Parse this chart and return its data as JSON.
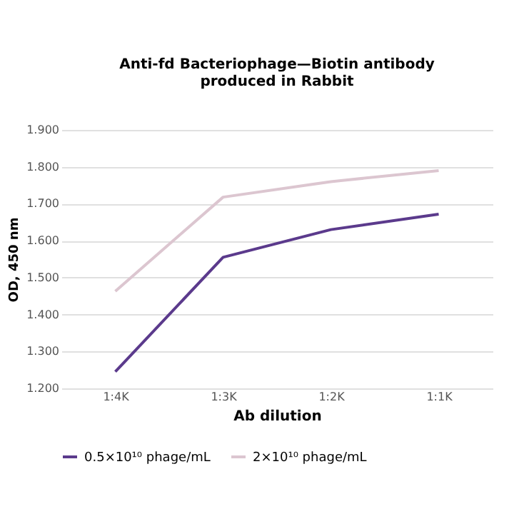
{
  "chart_data": {
    "type": "line",
    "title": [
      "Anti-fd Bacteriophage—Biotin antibody",
      "produced in Rabbit"
    ],
    "xlabel": "Ab dilution",
    "ylabel": "OD, 450 nm",
    "categories": [
      "1:4K",
      "1:3K",
      "1:2K",
      "1:1K"
    ],
    "series": [
      {
        "name": "0.5×10¹⁰ phage/mL",
        "color": "#5b3a8c",
        "values": [
          1.245,
          1.555,
          1.63,
          1.672
        ]
      },
      {
        "name": "2×10¹⁰ phage/mL",
        "color": "#dcc6d0",
        "values": [
          1.463,
          1.718,
          1.76,
          1.79
        ]
      }
    ],
    "ylim": [
      1.2,
      1.9
    ],
    "yticks": [
      {
        "value": 1.2,
        "label": "1.200"
      },
      {
        "value": 1.3,
        "label": "1.300"
      },
      {
        "value": 1.4,
        "label": "1.400"
      },
      {
        "value": 1.5,
        "label": "1.500"
      },
      {
        "value": 1.6,
        "label": "1.600"
      },
      {
        "value": 1.7,
        "label": "1.700"
      },
      {
        "value": 1.8,
        "label": "1.800"
      },
      {
        "value": 1.9,
        "label": "1.900"
      }
    ],
    "grid": "y",
    "legend": "bottom",
    "marker": "none",
    "line_style": "solid"
  }
}
